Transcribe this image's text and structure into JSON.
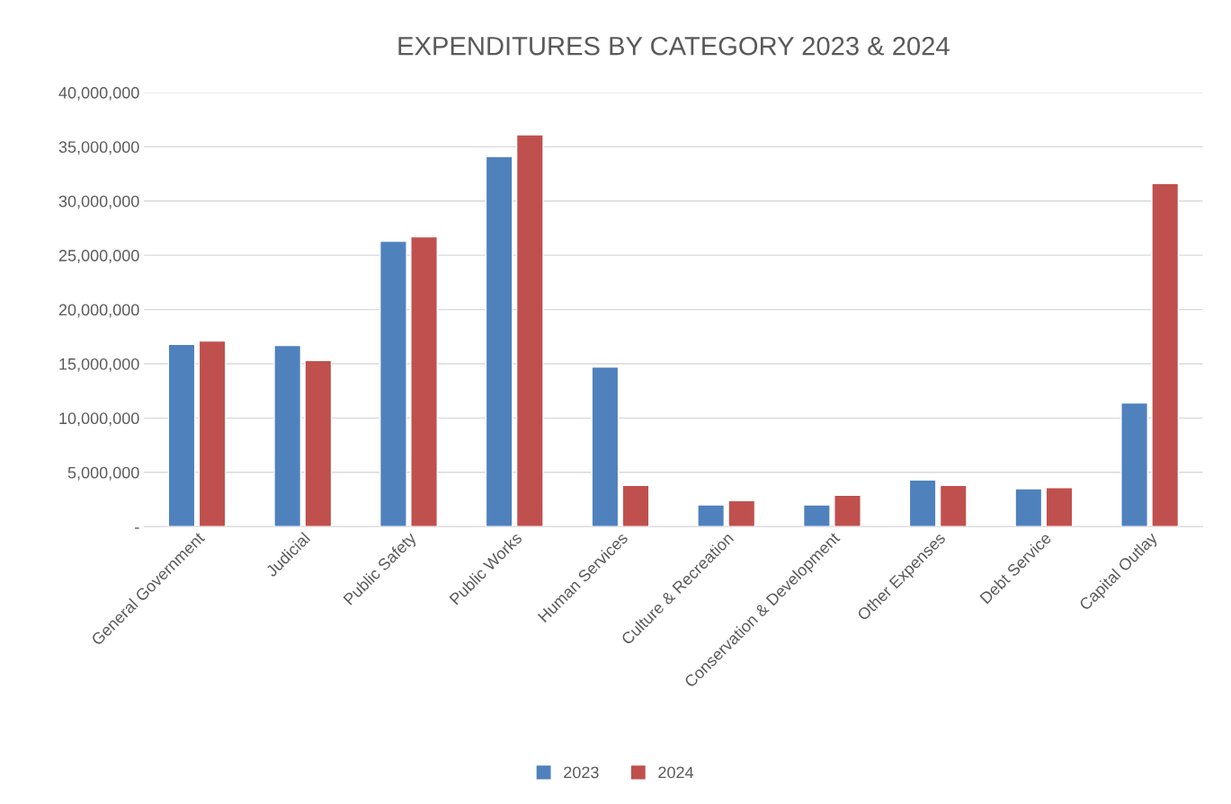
{
  "chart_data": {
    "type": "bar",
    "title": "EXPENDITURES BY CATEGORY 2023 & 2024",
    "categories": [
      "General Government",
      "Judicial",
      "Public Safety",
      "Public Works",
      "Human Services",
      "Culture & Recreation",
      "Conservation & Development",
      "Other Expenses",
      "Debt Service",
      "Capital Outlay"
    ],
    "series": [
      {
        "name": "2023",
        "color": "#4f81bd",
        "values": [
          16800000,
          16700000,
          26300000,
          34100000,
          14700000,
          2000000,
          2000000,
          4300000,
          3500000,
          11400000
        ]
      },
      {
        "name": "2024",
        "color": "#c0504d",
        "values": [
          17100000,
          15300000,
          26700000,
          36100000,
          3800000,
          2400000,
          2900000,
          3800000,
          3600000,
          31600000
        ]
      }
    ],
    "ylim": [
      0,
      40000000
    ],
    "yticks": [
      {
        "value": 0,
        "label": "-"
      },
      {
        "value": 5000000,
        "label": "5,000,000"
      },
      {
        "value": 10000000,
        "label": "10,000,000"
      },
      {
        "value": 15000000,
        "label": "15,000,000"
      },
      {
        "value": 20000000,
        "label": "20,000,000"
      },
      {
        "value": 25000000,
        "label": "25,000,000"
      },
      {
        "value": 30000000,
        "label": "30,000,000"
      },
      {
        "value": 35000000,
        "label": "35,000,000"
      },
      {
        "value": 40000000,
        "label": "40,000,000"
      }
    ],
    "grid": "y",
    "legend": "bottom"
  }
}
